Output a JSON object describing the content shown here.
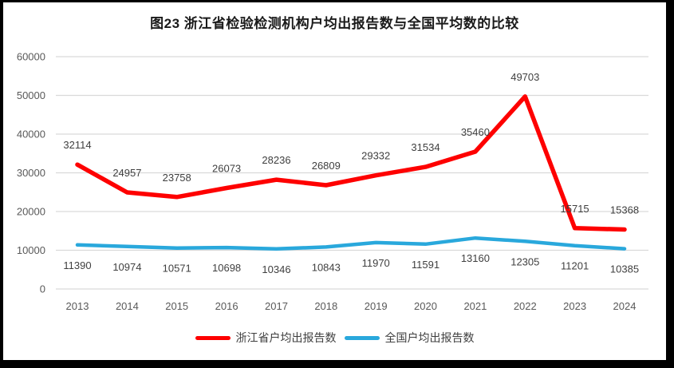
{
  "chart_data": {
    "type": "line",
    "title": "图23  浙江省检验检测机构户均出报告数与全国平均数的比较",
    "categories": [
      "2013",
      "2014",
      "2015",
      "2016",
      "2017",
      "2018",
      "2019",
      "2020",
      "2021",
      "2022",
      "2023",
      "2024"
    ],
    "series": [
      {
        "name": "浙江省户均出报告数",
        "color": "#fe0000",
        "label_position": "above",
        "values": [
          32114,
          24957,
          23758,
          26073,
          28236,
          26809,
          29332,
          31534,
          35460,
          49703,
          15715,
          15368
        ]
      },
      {
        "name": "全国户均出报告数",
        "color": "#29a8dc",
        "label_position": "below",
        "values": [
          11390,
          10974,
          10571,
          10698,
          10346,
          10843,
          11970,
          11591,
          13160,
          12305,
          11201,
          10385
        ]
      }
    ],
    "ylim": [
      0,
      60000
    ],
    "ytick_interval": 10000,
    "yticks": [
      "0",
      "10000",
      "20000",
      "30000",
      "40000",
      "50000",
      "60000"
    ],
    "grid": true,
    "gridline_color": "#d9d9d9",
    "legend_position": "bottom"
  }
}
